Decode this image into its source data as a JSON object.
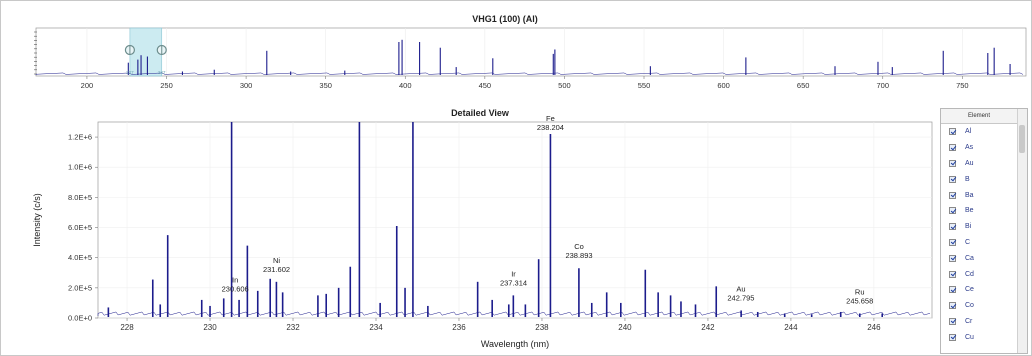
{
  "overview": {
    "title": "VHG1 (100) (Al)",
    "x_ticks": [
      "200",
      "250",
      "300",
      "350",
      "400",
      "450",
      "500",
      "550",
      "600",
      "650",
      "700",
      "750"
    ],
    "selection": {
      "from": 227,
      "to": 247,
      "handle_left_label": "227",
      "handle_right_label": "247"
    }
  },
  "detail": {
    "title": "Detailed View",
    "ylabel": "Intensity (c/s)",
    "xlabel": "Wavelength (nm)",
    "y_ticks": [
      "0.0E+0",
      "2.0E+5",
      "4.0E+5",
      "6.0E+5",
      "8.0E+5",
      "1.0E+6",
      "1.2E+6"
    ],
    "x_ticks": [
      "228",
      "230",
      "232",
      "234",
      "236",
      "238",
      "240",
      "242",
      "244",
      "246"
    ]
  },
  "chart_data": [
    {
      "type": "line",
      "title": "VHG1 (100) (Al)",
      "xlim": [
        168,
        790
      ],
      "x_ticks": [
        200,
        250,
        300,
        350,
        400,
        450,
        500,
        550,
        600,
        650,
        700,
        750
      ],
      "peaks": [
        {
          "x": 226,
          "y": 0.28
        },
        {
          "x": 232,
          "y": 0.35
        },
        {
          "x": 234,
          "y": 0.45
        },
        {
          "x": 238,
          "y": 0.42
        },
        {
          "x": 260,
          "y": 0.08
        },
        {
          "x": 280,
          "y": 0.12
        },
        {
          "x": 313,
          "y": 0.55
        },
        {
          "x": 328,
          "y": 0.08
        },
        {
          "x": 362,
          "y": 0.1
        },
        {
          "x": 396,
          "y": 0.75
        },
        {
          "x": 398,
          "y": 0.8
        },
        {
          "x": 409,
          "y": 0.75
        },
        {
          "x": 422,
          "y": 0.62
        },
        {
          "x": 432,
          "y": 0.18
        },
        {
          "x": 455,
          "y": 0.38
        },
        {
          "x": 493,
          "y": 0.48
        },
        {
          "x": 494,
          "y": 0.58
        },
        {
          "x": 554,
          "y": 0.2
        },
        {
          "x": 614,
          "y": 0.4
        },
        {
          "x": 670,
          "y": 0.2
        },
        {
          "x": 697,
          "y": 0.3
        },
        {
          "x": 706,
          "y": 0.18
        },
        {
          "x": 738,
          "y": 0.55
        },
        {
          "x": 766,
          "y": 0.5
        },
        {
          "x": 770,
          "y": 0.62
        },
        {
          "x": 780,
          "y": 0.25
        }
      ]
    },
    {
      "type": "line",
      "title": "Detailed View",
      "xlabel": "Wavelength (nm)",
      "ylabel": "Intensity (c/s)",
      "xlim": [
        227.3,
        247.4
      ],
      "ylim": [
        0,
        1300000
      ],
      "x_ticks": [
        228,
        230,
        232,
        234,
        236,
        238,
        240,
        242,
        244,
        246
      ],
      "y_ticks": [
        0,
        200000,
        400000,
        600000,
        800000,
        1000000,
        1200000
      ],
      "peaks": [
        {
          "x": 227.55,
          "y": 70000
        },
        {
          "x": 228.62,
          "y": 255000
        },
        {
          "x": 228.8,
          "y": 90000
        },
        {
          "x": 228.98,
          "y": 550000
        },
        {
          "x": 229.8,
          "y": 120000
        },
        {
          "x": 230.0,
          "y": 80000
        },
        {
          "x": 230.33,
          "y": 130000
        },
        {
          "x": 230.52,
          "y": 1320000
        },
        {
          "x": 230.7,
          "y": 120000
        },
        {
          "x": 230.9,
          "y": 480000
        },
        {
          "x": 231.15,
          "y": 180000
        },
        {
          "x": 231.45,
          "y": 260000
        },
        {
          "x": 231.6,
          "y": 240000
        },
        {
          "x": 231.75,
          "y": 170000
        },
        {
          "x": 232.6,
          "y": 150000
        },
        {
          "x": 232.8,
          "y": 160000
        },
        {
          "x": 233.1,
          "y": 200000
        },
        {
          "x": 233.38,
          "y": 340000
        },
        {
          "x": 233.6,
          "y": 1600000
        },
        {
          "x": 234.1,
          "y": 100000
        },
        {
          "x": 234.5,
          "y": 610000
        },
        {
          "x": 234.7,
          "y": 200000
        },
        {
          "x": 234.89,
          "y": 1600000
        },
        {
          "x": 235.25,
          "y": 80000
        },
        {
          "x": 236.45,
          "y": 240000
        },
        {
          "x": 236.8,
          "y": 120000
        },
        {
          "x": 237.2,
          "y": 90000
        },
        {
          "x": 237.31,
          "y": 150000
        },
        {
          "x": 237.6,
          "y": 90000
        },
        {
          "x": 237.92,
          "y": 390000
        },
        {
          "x": 238.204,
          "y": 1220000
        },
        {
          "x": 238.89,
          "y": 330000
        },
        {
          "x": 239.2,
          "y": 100000
        },
        {
          "x": 239.56,
          "y": 170000
        },
        {
          "x": 239.9,
          "y": 100000
        },
        {
          "x": 240.49,
          "y": 320000
        },
        {
          "x": 240.8,
          "y": 170000
        },
        {
          "x": 241.1,
          "y": 150000
        },
        {
          "x": 241.35,
          "y": 110000
        },
        {
          "x": 241.7,
          "y": 90000
        },
        {
          "x": 242.2,
          "y": 210000
        },
        {
          "x": 242.8,
          "y": 50000
        },
        {
          "x": 243.2,
          "y": 40000
        },
        {
          "x": 243.85,
          "y": 30000
        },
        {
          "x": 244.5,
          "y": 25000
        },
        {
          "x": 245.2,
          "y": 40000
        },
        {
          "x": 245.66,
          "y": 30000
        },
        {
          "x": 246.2,
          "y": 30000
        }
      ],
      "annotations": [
        {
          "name": "Fe",
          "value": "238.204",
          "x": 238.204,
          "y": 1220000
        },
        {
          "name": "Co",
          "value": "238.893",
          "x": 238.893,
          "y": 330000
        },
        {
          "name": "Ni",
          "value": "231.602",
          "x": 231.602,
          "y": 240000
        },
        {
          "name": "In",
          "value": "230.606",
          "x": 230.606,
          "y": 110000
        },
        {
          "name": "Ir",
          "value": "237.314",
          "x": 237.314,
          "y": 150000
        },
        {
          "name": "Au",
          "value": "242.795",
          "x": 242.795,
          "y": 50000
        },
        {
          "name": "Ru",
          "value": "245.658",
          "x": 245.658,
          "y": 30000
        }
      ]
    }
  ],
  "legend": {
    "header": "Element",
    "items": [
      "Al",
      "As",
      "Au",
      "B",
      "Ba",
      "Be",
      "Bi",
      "C",
      "Ca",
      "Cd",
      "Ce",
      "Co",
      "Cr",
      "Cu"
    ]
  },
  "colors": {
    "spectrum": "#1c1c8c",
    "selection": "#bfe6ee"
  }
}
